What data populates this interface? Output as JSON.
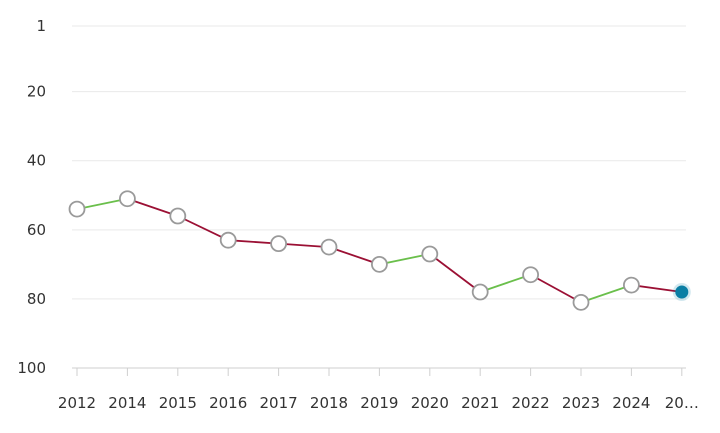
{
  "chart_data": {
    "type": "line",
    "title": "",
    "xlabel": "",
    "ylabel": "",
    "y_reversed": true,
    "ylim": [
      1,
      100
    ],
    "y_ticks": [
      1,
      20,
      40,
      60,
      80,
      100
    ],
    "y_tick_labels": [
      "1",
      "20",
      "40",
      "60",
      "80",
      "100"
    ],
    "categories": [
      "2012",
      "2014",
      "2015",
      "2016",
      "2017",
      "2018",
      "2019",
      "2020",
      "2021",
      "2022",
      "2023",
      "2024",
      "20…"
    ],
    "values": [
      54,
      51,
      56,
      63,
      64,
      65,
      70,
      67,
      78,
      73,
      81,
      76,
      78
    ],
    "colors": {
      "up": "#6abf4b",
      "down": "#9b1034",
      "marker_fill": "#ffffff",
      "marker_stroke": "#9a9a9a",
      "highlight": "#0a7ea4"
    }
  }
}
